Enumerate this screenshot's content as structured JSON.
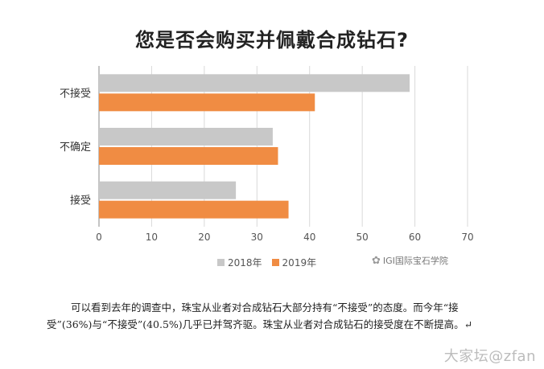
{
  "chart_data": {
    "type": "bar",
    "orientation": "horizontal",
    "title": "您是否会购买并佩戴合成钻石?",
    "categories": [
      "不接受",
      "不确定",
      "接受"
    ],
    "series": [
      {
        "name": "2018年",
        "color": "#c8c8c8",
        "values": [
          59,
          33,
          26
        ]
      },
      {
        "name": "2019年",
        "color": "#f08c43",
        "values": [
          41,
          34,
          36
        ]
      }
    ],
    "xlim": [
      0,
      70
    ],
    "xticks": [
      0,
      10,
      20,
      30,
      40,
      50,
      60,
      70
    ],
    "grid": true,
    "legend": "bottom"
  },
  "watermark": "IGI国际宝石学院",
  "caption": "可以看到去年的调查中，珠宝从业者对合成钻石大部分持有“不接受”的态度。而今年“接受”(36%)与“不接受”(40.5%)几乎已并驾齐驱。珠宝从业者对合成钻石的接受度在不断提高。↵",
  "site_watermark": "大家坛@zfan"
}
